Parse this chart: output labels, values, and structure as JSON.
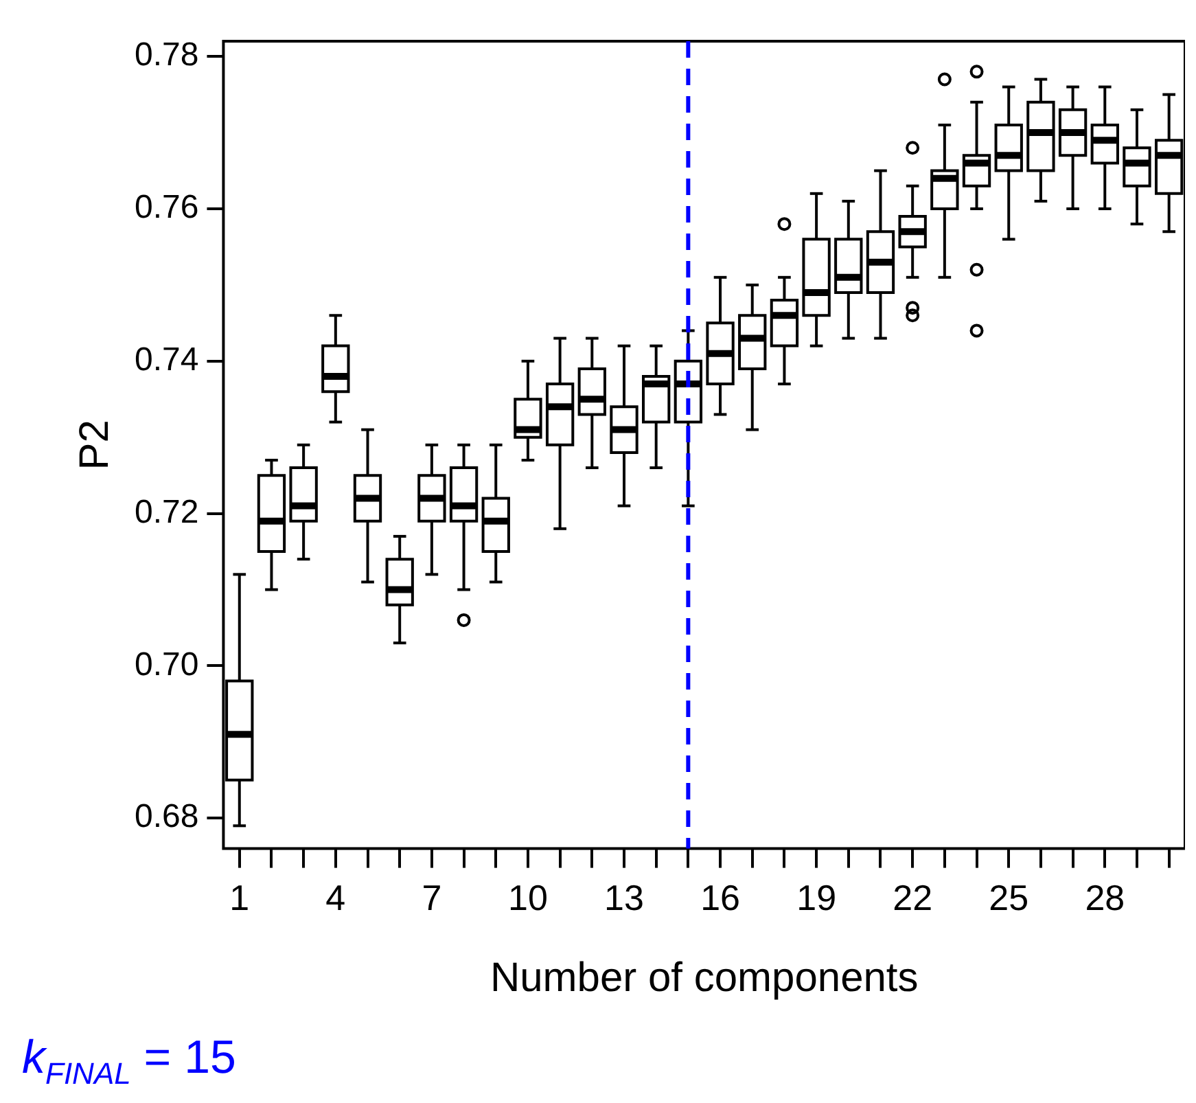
{
  "chart_data": {
    "type": "box",
    "xlabel": "Number of components",
    "ylabel": "P2",
    "categories": [
      "1",
      null,
      null,
      "4",
      null,
      null,
      "7",
      null,
      null,
      "10",
      null,
      null,
      "13",
      null,
      null,
      "16",
      null,
      null,
      "19",
      null,
      null,
      "22",
      null,
      null,
      "25",
      null,
      null,
      "28",
      null,
      null
    ],
    "ylim": [
      0.676,
      0.782
    ],
    "yticks": [
      0.68,
      {
        "value": 0.7,
        "label": "0.70"
      },
      0.72,
      0.74,
      0.76,
      0.78
    ],
    "grid": false,
    "legend": false,
    "boxes": [
      {
        "low": 0.679,
        "q1": 0.685,
        "median": 0.691,
        "q3": 0.698,
        "high": 0.712
      },
      {
        "low": 0.71,
        "q1": 0.715,
        "median": 0.719,
        "q3": 0.725,
        "high": 0.727
      },
      {
        "low": 0.714,
        "q1": 0.719,
        "median": 0.721,
        "q3": 0.726,
        "high": 0.729
      },
      {
        "low": 0.732,
        "q1": 0.736,
        "median": 0.738,
        "q3": 0.742,
        "high": 0.746
      },
      {
        "low": 0.711,
        "q1": 0.719,
        "median": 0.722,
        "q3": 0.725,
        "high": 0.731
      },
      {
        "low": 0.703,
        "q1": 0.708,
        "median": 0.71,
        "q3": 0.714,
        "high": 0.717
      },
      {
        "low": 0.712,
        "q1": 0.719,
        "median": 0.722,
        "q3": 0.725,
        "high": 0.729
      },
      {
        "low": 0.71,
        "q1": 0.719,
        "median": 0.721,
        "q3": 0.726,
        "high": 0.729,
        "outliers": [
          0.706
        ]
      },
      {
        "low": 0.711,
        "q1": 0.715,
        "median": 0.719,
        "q3": 0.722,
        "high": 0.729
      },
      {
        "low": 0.727,
        "q1": 0.73,
        "median": 0.731,
        "q3": 0.735,
        "high": 0.74
      },
      {
        "low": 0.718,
        "q1": 0.729,
        "median": 0.734,
        "q3": 0.737,
        "high": 0.743
      },
      {
        "low": 0.726,
        "q1": 0.733,
        "median": 0.735,
        "q3": 0.739,
        "high": 0.743
      },
      {
        "low": 0.721,
        "q1": 0.728,
        "median": 0.731,
        "q3": 0.734,
        "high": 0.742
      },
      {
        "low": 0.726,
        "q1": 0.732,
        "median": 0.737,
        "q3": 0.738,
        "high": 0.742
      },
      {
        "low": 0.721,
        "q1": 0.732,
        "median": 0.737,
        "q3": 0.74,
        "high": 0.744
      },
      {
        "low": 0.733,
        "q1": 0.737,
        "median": 0.741,
        "q3": 0.745,
        "high": 0.751
      },
      {
        "low": 0.731,
        "q1": 0.739,
        "median": 0.743,
        "q3": 0.746,
        "high": 0.75
      },
      {
        "low": 0.737,
        "q1": 0.742,
        "median": 0.746,
        "q3": 0.748,
        "high": 0.751,
        "outliers": [
          0.758
        ]
      },
      {
        "low": 0.742,
        "q1": 0.746,
        "median": 0.749,
        "q3": 0.756,
        "high": 0.762
      },
      {
        "low": 0.743,
        "q1": 0.749,
        "median": 0.751,
        "q3": 0.756,
        "high": 0.761
      },
      {
        "low": 0.743,
        "q1": 0.749,
        "median": 0.753,
        "q3": 0.757,
        "high": 0.765
      },
      {
        "low": 0.751,
        "q1": 0.755,
        "median": 0.757,
        "q3": 0.759,
        "high": 0.763,
        "outliers": [
          0.768,
          0.747,
          0.746
        ]
      },
      {
        "low": 0.751,
        "q1": 0.76,
        "median": 0.764,
        "q3": 0.765,
        "high": 0.771,
        "outliers": [
          0.777
        ]
      },
      {
        "low": 0.76,
        "q1": 0.763,
        "median": 0.766,
        "q3": 0.767,
        "high": 0.774,
        "outliers": [
          0.778,
          0.752,
          0.744
        ]
      },
      {
        "low": 0.756,
        "q1": 0.765,
        "median": 0.767,
        "q3": 0.771,
        "high": 0.776
      },
      {
        "low": 0.761,
        "q1": 0.765,
        "median": 0.77,
        "q3": 0.774,
        "high": 0.777
      },
      {
        "low": 0.76,
        "q1": 0.767,
        "median": 0.77,
        "q3": 0.773,
        "high": 0.776
      },
      {
        "low": 0.76,
        "q1": 0.766,
        "median": 0.769,
        "q3": 0.771,
        "high": 0.776
      },
      {
        "low": 0.758,
        "q1": 0.763,
        "median": 0.766,
        "q3": 0.768,
        "high": 0.773
      },
      {
        "low": 0.757,
        "q1": 0.762,
        "median": 0.767,
        "q3": 0.769,
        "high": 0.775
      }
    ],
    "annotations": [
      "k$_{FINAL}$ = 15"
    ]
  }
}
